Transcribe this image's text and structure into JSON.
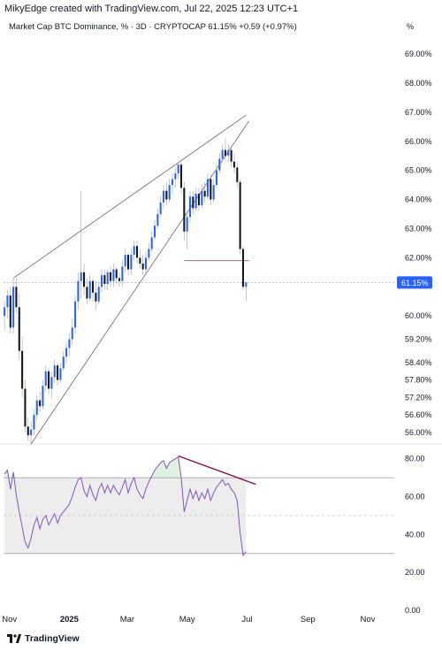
{
  "header": {
    "credit": "MikyEdge created with TradingView.com, Jul 22, 2025 12:23 UTC+1",
    "symbol_line": "Market Cap BTC Dominance, % · 3D · CRYPTOCAP  61.15%  +0.59 (+0.97%)",
    "unit": "%"
  },
  "footer": {
    "brand": "TradingView"
  },
  "colors": {
    "up": "#2962ff",
    "down": "#131722",
    "wedge": "#7b5a7c",
    "support": "#9c6b80",
    "divergence": "#880e4f",
    "rsi_line": "#7e57c2",
    "rsi_band": "#ededed",
    "price_tag": "#2962ff"
  },
  "chart_data": [
    {
      "type": "candlestick",
      "title": "Market Cap BTC Dominance, % · 3D · CRYPTOCAP",
      "last_value_label": "61.15%",
      "y_unit": "%",
      "ylim": [
        55.6,
        69.7
      ],
      "y_ticks": [
        "69.00%",
        "68.00%",
        "67.00%",
        "66.00%",
        "65.00%",
        "64.00%",
        "63.00%",
        "62.00%",
        "60.00%",
        "59.20%",
        "58.40%",
        "57.80%",
        "57.20%",
        "56.60%",
        "56.00%"
      ],
      "x_ticks": [
        "Nov",
        "2025",
        "Mar",
        "May",
        "Jul",
        "Sep",
        "Nov"
      ],
      "x_range": [
        "2024-10-26",
        "2025-11-28"
      ],
      "candles": [
        {
          "t": "2024-10-27",
          "o": 60.0,
          "h": 60.5,
          "l": 59.5,
          "c": 60.3
        },
        {
          "t": "2024-10-30",
          "o": 60.3,
          "h": 60.9,
          "l": 59.9,
          "c": 60.7
        },
        {
          "t": "2024-11-02",
          "o": 60.7,
          "h": 61.0,
          "l": 59.4,
          "c": 59.6
        },
        {
          "t": "2024-11-05",
          "o": 59.6,
          "h": 61.3,
          "l": 59.4,
          "c": 61.0
        },
        {
          "t": "2024-11-08",
          "o": 61.0,
          "h": 61.3,
          "l": 60.1,
          "c": 60.3
        },
        {
          "t": "2024-11-11",
          "o": 60.3,
          "h": 60.8,
          "l": 58.5,
          "c": 58.8
        },
        {
          "t": "2024-11-14",
          "o": 58.8,
          "h": 59.3,
          "l": 57.2,
          "c": 57.5
        },
        {
          "t": "2024-11-17",
          "o": 57.5,
          "h": 57.8,
          "l": 56.0,
          "c": 56.2
        },
        {
          "t": "2024-11-20",
          "o": 56.2,
          "h": 56.5,
          "l": 55.7,
          "c": 55.9
        },
        {
          "t": "2024-11-23",
          "o": 55.9,
          "h": 56.4,
          "l": 55.6,
          "c": 56.1
        },
        {
          "t": "2024-11-26",
          "o": 56.1,
          "h": 56.8,
          "l": 55.9,
          "c": 56.6
        },
        {
          "t": "2024-11-29",
          "o": 56.6,
          "h": 57.3,
          "l": 56.4,
          "c": 57.1
        },
        {
          "t": "2024-12-02",
          "o": 57.1,
          "h": 57.4,
          "l": 56.7,
          "c": 56.9
        },
        {
          "t": "2024-12-05",
          "o": 56.9,
          "h": 57.8,
          "l": 56.8,
          "c": 57.6
        },
        {
          "t": "2024-12-08",
          "o": 57.6,
          "h": 58.3,
          "l": 57.4,
          "c": 58.1
        },
        {
          "t": "2024-12-11",
          "o": 58.1,
          "h": 58.2,
          "l": 57.3,
          "c": 57.5
        },
        {
          "t": "2024-12-14",
          "o": 57.5,
          "h": 58.1,
          "l": 57.2,
          "c": 57.9
        },
        {
          "t": "2024-12-17",
          "o": 57.9,
          "h": 58.5,
          "l": 57.7,
          "c": 58.3
        },
        {
          "t": "2024-12-20",
          "o": 58.3,
          "h": 58.4,
          "l": 57.6,
          "c": 57.8
        },
        {
          "t": "2024-12-23",
          "o": 57.8,
          "h": 58.4,
          "l": 57.7,
          "c": 58.2
        },
        {
          "t": "2024-12-26",
          "o": 58.2,
          "h": 58.8,
          "l": 58.1,
          "c": 58.6
        },
        {
          "t": "2024-12-29",
          "o": 58.6,
          "h": 59.1,
          "l": 58.4,
          "c": 58.9
        },
        {
          "t": "2025-01-01",
          "o": 58.9,
          "h": 59.4,
          "l": 58.6,
          "c": 59.2
        },
        {
          "t": "2025-01-04",
          "o": 59.2,
          "h": 59.9,
          "l": 59.0,
          "c": 59.6
        },
        {
          "t": "2025-01-07",
          "o": 59.6,
          "h": 60.7,
          "l": 59.4,
          "c": 60.5
        },
        {
          "t": "2025-01-10",
          "o": 60.5,
          "h": 61.5,
          "l": 60.2,
          "c": 61.2
        },
        {
          "t": "2025-01-13",
          "o": 61.2,
          "h": 64.3,
          "l": 60.6,
          "c": 61.5
        },
        {
          "t": "2025-01-16",
          "o": 61.5,
          "h": 61.8,
          "l": 60.7,
          "c": 61.0
        },
        {
          "t": "2025-01-19",
          "o": 61.0,
          "h": 61.3,
          "l": 60.4,
          "c": 60.6
        },
        {
          "t": "2025-01-22",
          "o": 60.6,
          "h": 61.4,
          "l": 60.5,
          "c": 61.2
        },
        {
          "t": "2025-01-25",
          "o": 61.2,
          "h": 61.3,
          "l": 60.5,
          "c": 60.8
        },
        {
          "t": "2025-01-28",
          "o": 60.8,
          "h": 61.2,
          "l": 60.2,
          "c": 60.5
        },
        {
          "t": "2025-01-31",
          "o": 60.5,
          "h": 61.2,
          "l": 60.4,
          "c": 61.0
        },
        {
          "t": "2025-02-03",
          "o": 61.0,
          "h": 61.6,
          "l": 60.8,
          "c": 61.4
        },
        {
          "t": "2025-02-06",
          "o": 61.4,
          "h": 61.6,
          "l": 60.9,
          "c": 61.1
        },
        {
          "t": "2025-02-09",
          "o": 61.1,
          "h": 61.6,
          "l": 60.9,
          "c": 61.5
        },
        {
          "t": "2025-02-12",
          "o": 61.5,
          "h": 61.7,
          "l": 61.0,
          "c": 61.2
        },
        {
          "t": "2025-02-15",
          "o": 61.2,
          "h": 61.8,
          "l": 61.0,
          "c": 61.6
        },
        {
          "t": "2025-02-18",
          "o": 61.6,
          "h": 61.7,
          "l": 61.1,
          "c": 61.3
        },
        {
          "t": "2025-02-21",
          "o": 61.3,
          "h": 61.5,
          "l": 61.0,
          "c": 61.2
        },
        {
          "t": "2025-02-24",
          "o": 61.2,
          "h": 61.9,
          "l": 61.0,
          "c": 61.7
        },
        {
          "t": "2025-02-27",
          "o": 61.7,
          "h": 62.3,
          "l": 61.5,
          "c": 62.1
        },
        {
          "t": "2025-03-02",
          "o": 62.1,
          "h": 62.2,
          "l": 61.4,
          "c": 61.6
        },
        {
          "t": "2025-03-05",
          "o": 61.6,
          "h": 62.3,
          "l": 61.4,
          "c": 62.1
        },
        {
          "t": "2025-03-08",
          "o": 62.1,
          "h": 62.6,
          "l": 61.9,
          "c": 62.4
        },
        {
          "t": "2025-03-11",
          "o": 62.4,
          "h": 62.6,
          "l": 61.8,
          "c": 62.0
        },
        {
          "t": "2025-03-14",
          "o": 62.0,
          "h": 62.3,
          "l": 61.6,
          "c": 61.8
        },
        {
          "t": "2025-03-17",
          "o": 61.8,
          "h": 62.1,
          "l": 61.4,
          "c": 61.6
        },
        {
          "t": "2025-03-20",
          "o": 61.6,
          "h": 62.2,
          "l": 61.4,
          "c": 62.0
        },
        {
          "t": "2025-03-23",
          "o": 62.0,
          "h": 62.5,
          "l": 61.9,
          "c": 62.3
        },
        {
          "t": "2025-03-26",
          "o": 62.3,
          "h": 62.9,
          "l": 62.2,
          "c": 62.7
        },
        {
          "t": "2025-03-29",
          "o": 62.7,
          "h": 63.3,
          "l": 62.6,
          "c": 63.1
        },
        {
          "t": "2025-04-01",
          "o": 63.1,
          "h": 63.7,
          "l": 63.0,
          "c": 63.5
        },
        {
          "t": "2025-04-04",
          "o": 63.5,
          "h": 64.1,
          "l": 63.4,
          "c": 63.9
        },
        {
          "t": "2025-04-07",
          "o": 63.9,
          "h": 64.5,
          "l": 63.7,
          "c": 64.3
        },
        {
          "t": "2025-04-10",
          "o": 64.3,
          "h": 64.6,
          "l": 63.8,
          "c": 64.0
        },
        {
          "t": "2025-04-13",
          "o": 64.0,
          "h": 64.7,
          "l": 63.9,
          "c": 64.5
        },
        {
          "t": "2025-04-16",
          "o": 64.5,
          "h": 64.9,
          "l": 64.2,
          "c": 64.7
        },
        {
          "t": "2025-04-19",
          "o": 64.7,
          "h": 65.1,
          "l": 64.4,
          "c": 64.9
        },
        {
          "t": "2025-04-22",
          "o": 64.9,
          "h": 65.3,
          "l": 64.7,
          "c": 65.2
        },
        {
          "t": "2025-04-25",
          "o": 65.2,
          "h": 65.4,
          "l": 64.2,
          "c": 64.4
        },
        {
          "t": "2025-04-28",
          "o": 64.4,
          "h": 64.6,
          "l": 62.6,
          "c": 62.9
        },
        {
          "t": "2025-05-01",
          "o": 62.9,
          "h": 63.6,
          "l": 62.3,
          "c": 63.4
        },
        {
          "t": "2025-05-04",
          "o": 63.4,
          "h": 64.3,
          "l": 63.2,
          "c": 64.1
        },
        {
          "t": "2025-05-07",
          "o": 64.1,
          "h": 64.3,
          "l": 63.5,
          "c": 63.7
        },
        {
          "t": "2025-05-10",
          "o": 63.7,
          "h": 64.4,
          "l": 63.6,
          "c": 64.2
        },
        {
          "t": "2025-05-13",
          "o": 64.2,
          "h": 64.4,
          "l": 63.6,
          "c": 63.8
        },
        {
          "t": "2025-05-16",
          "o": 63.8,
          "h": 64.5,
          "l": 63.7,
          "c": 64.3
        },
        {
          "t": "2025-05-19",
          "o": 64.3,
          "h": 64.6,
          "l": 63.9,
          "c": 64.1
        },
        {
          "t": "2025-05-22",
          "o": 64.1,
          "h": 64.9,
          "l": 64.0,
          "c": 64.7
        },
        {
          "t": "2025-05-25",
          "o": 64.7,
          "h": 64.9,
          "l": 63.8,
          "c": 64.0
        },
        {
          "t": "2025-05-28",
          "o": 64.0,
          "h": 64.7,
          "l": 63.9,
          "c": 64.5
        },
        {
          "t": "2025-05-31",
          "o": 64.5,
          "h": 65.2,
          "l": 64.4,
          "c": 65.0
        },
        {
          "t": "2025-06-03",
          "o": 65.0,
          "h": 65.6,
          "l": 64.9,
          "c": 65.4
        },
        {
          "t": "2025-06-06",
          "o": 65.4,
          "h": 65.9,
          "l": 65.3,
          "c": 65.7
        },
        {
          "t": "2025-06-09",
          "o": 65.7,
          "h": 66.1,
          "l": 65.3,
          "c": 65.5
        },
        {
          "t": "2025-06-12",
          "o": 65.5,
          "h": 65.9,
          "l": 65.3,
          "c": 65.7
        },
        {
          "t": "2025-06-15",
          "o": 65.7,
          "h": 65.8,
          "l": 65.1,
          "c": 65.3
        },
        {
          "t": "2025-06-18",
          "o": 65.3,
          "h": 65.6,
          "l": 64.9,
          "c": 65.1
        },
        {
          "t": "2025-06-21",
          "o": 65.1,
          "h": 65.3,
          "l": 64.4,
          "c": 64.6
        },
        {
          "t": "2025-06-24",
          "o": 64.6,
          "h": 64.7,
          "l": 62.1,
          "c": 62.3
        },
        {
          "t": "2025-06-27",
          "o": 62.3,
          "h": 62.4,
          "l": 60.9,
          "c": 61.0
        },
        {
          "t": "2025-06-30",
          "o": 61.0,
          "h": 61.2,
          "l": 60.5,
          "c": 61.15
        }
      ],
      "drawings": {
        "wedge_upper": [
          {
            "t": "2024-11-05",
            "v": 61.3
          },
          {
            "t": "2025-06-30",
            "v": 66.9
          }
        ],
        "wedge_lower": [
          {
            "t": "2024-11-23",
            "v": 55.6
          },
          {
            "t": "2025-07-03",
            "v": 66.7
          }
        ],
        "support_level": {
          "from": "2025-04-28",
          "to": "2025-07-03",
          "v": 61.9
        },
        "last_price_line": 61.15
      }
    },
    {
      "type": "line",
      "title": "",
      "ylim": [
        0,
        85
      ],
      "y_ticks": [
        "80.00",
        "60.00",
        "40.00",
        "20.00",
        "0.00"
      ],
      "levels": [
        70,
        50,
        30
      ],
      "series": [
        {
          "values": [
            [
              "2024-10-27",
              72
            ],
            [
              "2024-10-30",
              74
            ],
            [
              "2024-11-02",
              64
            ],
            [
              "2024-11-05",
              73
            ],
            [
              "2024-11-08",
              61
            ],
            [
              "2024-11-11",
              52
            ],
            [
              "2024-11-14",
              44
            ],
            [
              "2024-11-17",
              36
            ],
            [
              "2024-11-20",
              33
            ],
            [
              "2024-11-23",
              38
            ],
            [
              "2024-11-26",
              45
            ],
            [
              "2024-11-29",
              49
            ],
            [
              "2024-12-02",
              43
            ],
            [
              "2024-12-05",
              48
            ],
            [
              "2024-12-08",
              50
            ],
            [
              "2024-12-11",
              45
            ],
            [
              "2024-12-14",
              48
            ],
            [
              "2024-12-17",
              51
            ],
            [
              "2024-12-20",
              46
            ],
            [
              "2024-12-23",
              50
            ],
            [
              "2024-12-26",
              52
            ],
            [
              "2024-12-29",
              54
            ],
            [
              "2025-01-01",
              56
            ],
            [
              "2025-01-04",
              60
            ],
            [
              "2025-01-07",
              65
            ],
            [
              "2025-01-10",
              69
            ],
            [
              "2025-01-13",
              70
            ],
            [
              "2025-01-16",
              63
            ],
            [
              "2025-01-19",
              60
            ],
            [
              "2025-01-22",
              66
            ],
            [
              "2025-01-25",
              61
            ],
            [
              "2025-01-28",
              58
            ],
            [
              "2025-01-31",
              64
            ],
            [
              "2025-02-03",
              67
            ],
            [
              "2025-02-06",
              62
            ],
            [
              "2025-02-09",
              66
            ],
            [
              "2025-02-12",
              62
            ],
            [
              "2025-02-15",
              66
            ],
            [
              "2025-02-18",
              63
            ],
            [
              "2025-02-21",
              61
            ],
            [
              "2025-02-24",
              65
            ],
            [
              "2025-02-27",
              69
            ],
            [
              "2025-03-02",
              62
            ],
            [
              "2025-03-05",
              67
            ],
            [
              "2025-03-08",
              70
            ],
            [
              "2025-03-11",
              64
            ],
            [
              "2025-03-14",
              61
            ],
            [
              "2025-03-17",
              59
            ],
            [
              "2025-03-20",
              64
            ],
            [
              "2025-03-23",
              68
            ],
            [
              "2025-03-26",
              71
            ],
            [
              "2025-03-29",
              74
            ],
            [
              "2025-04-01",
              76
            ],
            [
              "2025-04-04",
              78
            ],
            [
              "2025-04-07",
              79
            ],
            [
              "2025-04-10",
              75
            ],
            [
              "2025-04-13",
              78
            ],
            [
              "2025-04-16",
              79
            ],
            [
              "2025-04-19",
              80
            ],
            [
              "2025-04-22",
              81
            ],
            [
              "2025-04-25",
              70
            ],
            [
              "2025-04-28",
              52
            ],
            [
              "2025-05-01",
              58
            ],
            [
              "2025-05-04",
              64
            ],
            [
              "2025-05-07",
              59
            ],
            [
              "2025-05-10",
              63
            ],
            [
              "2025-05-13",
              58
            ],
            [
              "2025-05-16",
              62
            ],
            [
              "2025-05-19",
              59
            ],
            [
              "2025-05-22",
              64
            ],
            [
              "2025-05-25",
              58
            ],
            [
              "2025-05-28",
              62
            ],
            [
              "2025-05-31",
              65
            ],
            [
              "2025-06-03",
              67
            ],
            [
              "2025-06-06",
              69
            ],
            [
              "2025-06-09",
              66
            ],
            [
              "2025-06-12",
              67
            ],
            [
              "2025-06-15",
              64
            ],
            [
              "2025-06-18",
              62
            ],
            [
              "2025-06-21",
              58
            ],
            [
              "2025-06-24",
              41
            ],
            [
              "2025-06-27",
              29
            ],
            [
              "2025-06-30",
              31
            ]
          ]
        }
      ],
      "band": {
        "lower": 30,
        "upper": 70
      },
      "divergence_line": [
        {
          "t": "2025-04-22",
          "v": 81.5
        },
        {
          "t": "2025-07-10",
          "v": 66.5
        }
      ]
    }
  ]
}
